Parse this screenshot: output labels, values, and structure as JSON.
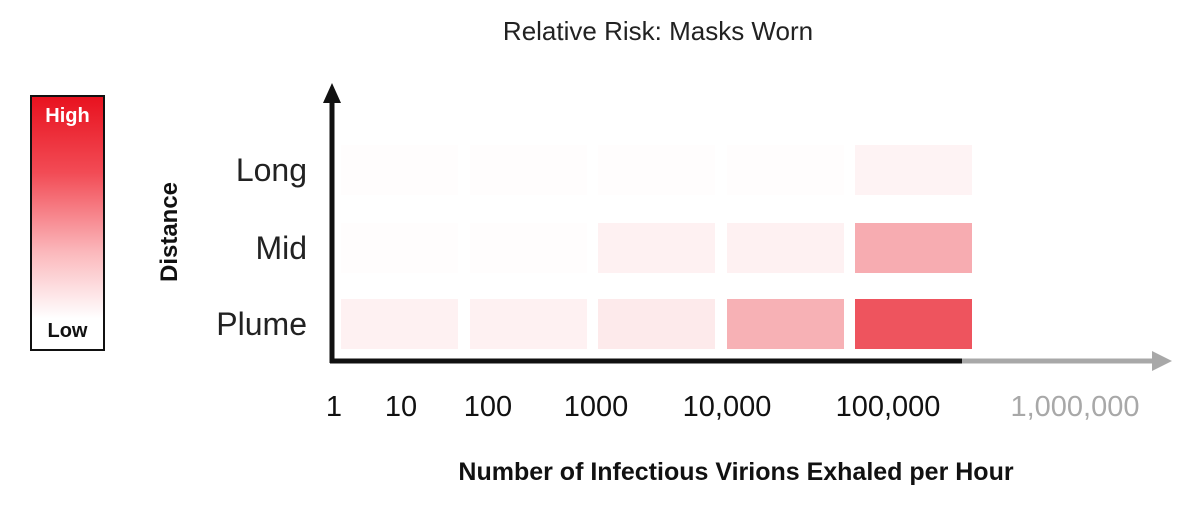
{
  "chart_data": {
    "type": "heatmap",
    "title": "Relative Risk: Masks Worn",
    "xlabel": "Number of Infectious Virions Exhaled per Hour",
    "ylabel": "Distance",
    "x_ticks": [
      "1",
      "10",
      "100",
      "1000",
      "10,000",
      "100,000",
      "1,000,000"
    ],
    "x_ticks_greyed": [
      "1,000,000"
    ],
    "y_categories": [
      "Long",
      "Mid",
      "Plume"
    ],
    "x_bins": [
      "1-100",
      "100-1000",
      "1000-10,000",
      "10,000-100,000",
      "100,000-1,000,000"
    ],
    "scale": {
      "high_label": "High",
      "low_label": "Low",
      "high_color": "#e8121f",
      "low_color": "#ffffff"
    },
    "rows": [
      {
        "name": "Long",
        "values": [
          0.01,
          0.01,
          0.01,
          0.01,
          0.05
        ]
      },
      {
        "name": "Mid",
        "values": [
          0.01,
          0.01,
          0.06,
          0.06,
          0.35
        ]
      },
      {
        "name": "Plume",
        "values": [
          0.06,
          0.06,
          0.09,
          0.33,
          0.72
        ]
      }
    ]
  }
}
